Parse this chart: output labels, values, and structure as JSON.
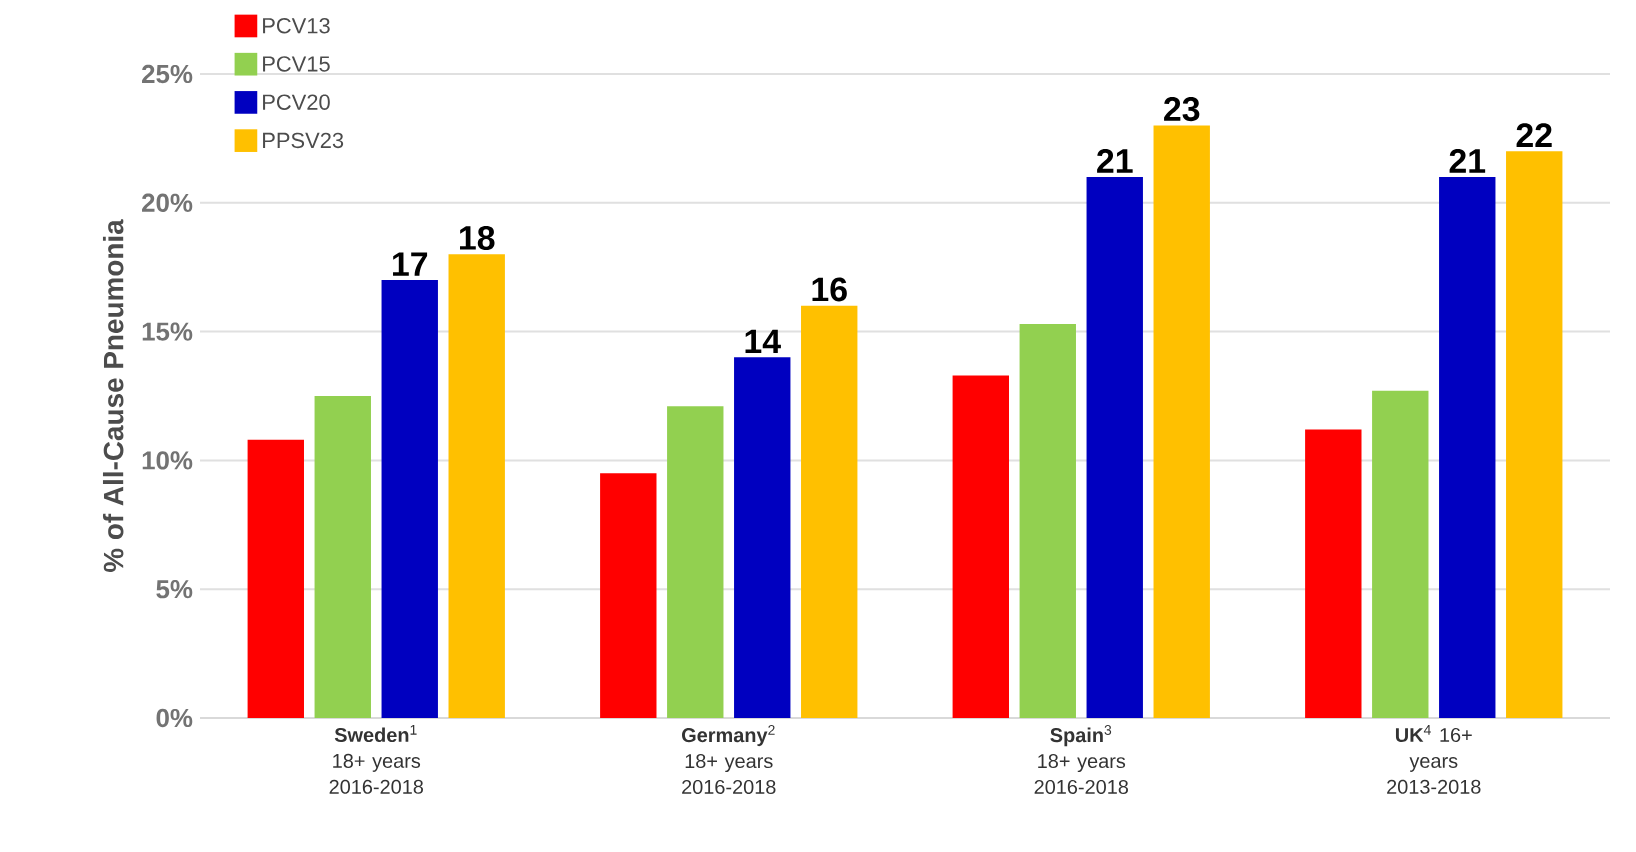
{
  "chart_data": {
    "type": "bar",
    "ylabel": "% of All-Cause Pneumonia",
    "categories": [
      "**Sweden**$^{1}$ 18+ years 2016-2018",
      "**Germany**$^{2}$ 18+ years 2016-2018",
      "**Spain**$^{3}$ 18+ years 2016-2018",
      "**UK**$^{4}$ 16+ years 2013-2018"
    ],
    "series": [
      {
        "name": "PCV13",
        "color": "#ff0000",
        "values": [
          10.8,
          9.5,
          13.3,
          11.2
        ]
      },
      {
        "name": "PCV15",
        "color": "#92d050",
        "values": [
          12.5,
          12.1,
          15.3,
          12.7
        ]
      },
      {
        "name": "PCV20",
        "color": "#0000c0",
        "values": [
          17,
          14,
          21,
          21
        ],
        "value_labels": [
          "17",
          "14",
          "21",
          "21"
        ]
      },
      {
        "name": "PPSV23",
        "color": "#ffc000",
        "values": [
          18,
          16,
          23,
          22
        ],
        "value_labels": [
          "18",
          "16",
          "23",
          "22"
        ]
      }
    ],
    "ylim": [
      0,
      25
    ],
    "yticks": [
      {
        "value": 0,
        "label": "0%"
      },
      {
        "value": 5,
        "label": "5%"
      },
      {
        "value": 10,
        "label": "10%"
      },
      {
        "value": 15,
        "label": "15%"
      },
      {
        "value": 20,
        "label": "20%"
      },
      {
        "value": 25,
        "label": "25%"
      }
    ],
    "grid": "y",
    "legend": "top left"
  }
}
